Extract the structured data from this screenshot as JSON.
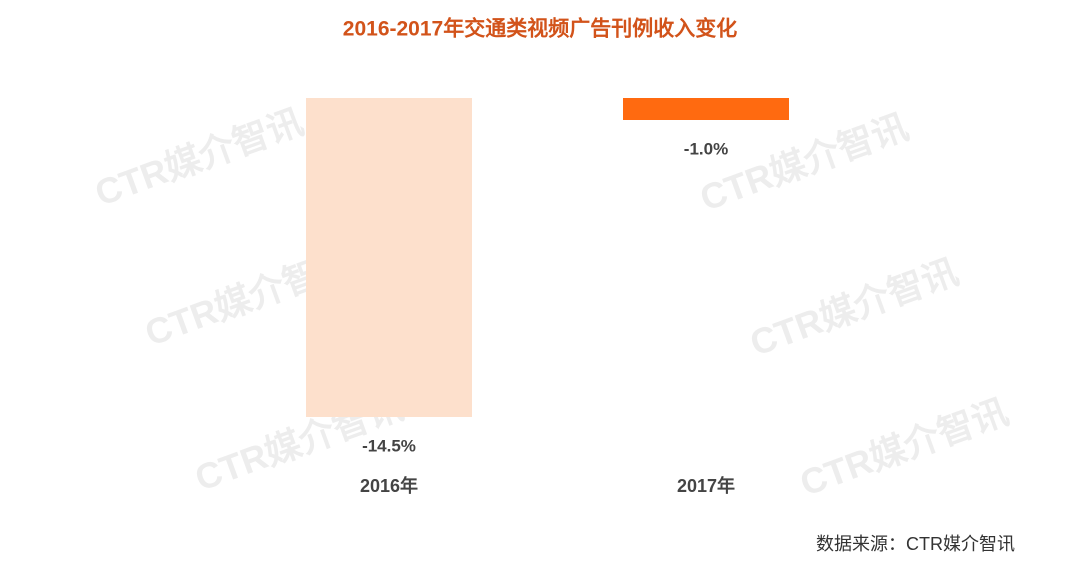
{
  "chart_data": {
    "type": "bar",
    "title": "2016-2017年交通类视频广告刊例收入变化",
    "categories": [
      "2016年",
      "2017年"
    ],
    "values": [
      -14.5,
      -1.0
    ],
    "value_labels": [
      "-14.5%",
      "-1.0%"
    ],
    "colors": [
      "#fde0cc",
      "#ff6a10"
    ],
    "source": "数据来源：CTR媒介智讯",
    "watermark": "CTR媒介智讯"
  }
}
